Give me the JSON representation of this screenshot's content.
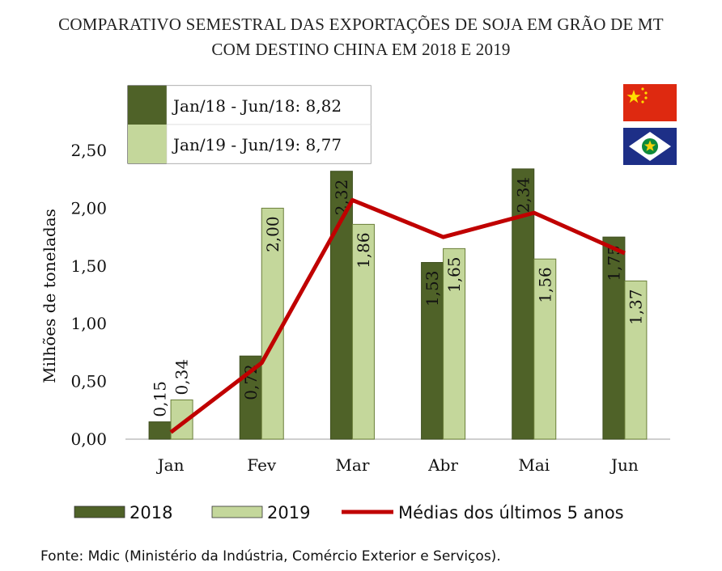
{
  "chart_data": {
    "type": "bar",
    "title": [
      "COMPARATIVO SEMESTRAL DAS EXPORTAÇÕES DE SOJA EM GRÃO DE MT",
      "COM DESTINO CHINA EM 2018 E 2019"
    ],
    "ylabel": "Milhões de toneladas",
    "ylim": [
      0,
      2.5
    ],
    "yticks": [
      "0,00",
      "0,50",
      "1,00",
      "1,50",
      "2,00",
      "2,50"
    ],
    "categories": [
      "Jan",
      "Fev",
      "Mar",
      "Abr",
      "Mai",
      "Jun"
    ],
    "series": [
      {
        "name": "2018",
        "kind": "bar",
        "color": "#4f6228",
        "values": [
          0.15,
          0.72,
          2.32,
          1.53,
          2.34,
          1.75
        ],
        "labels": [
          "0,15",
          "0,72",
          "2,32",
          "1,53",
          "2,34",
          "1,75"
        ]
      },
      {
        "name": "2019",
        "kind": "bar",
        "color": "#c4d79b",
        "values": [
          0.34,
          2.0,
          1.86,
          1.65,
          1.56,
          1.37
        ],
        "labels": [
          "0,34",
          "2,00",
          "1,86",
          "1,65",
          "1,56",
          "1,37"
        ]
      },
      {
        "name": "Médias dos últimos 5 anos",
        "kind": "line",
        "color": "#c00000",
        "values": [
          0.06,
          0.66,
          2.07,
          1.75,
          1.96,
          1.61
        ]
      }
    ],
    "totals_box": [
      {
        "label": "Jan/18 - Jun/18: 8,82",
        "color": "#4f6228"
      },
      {
        "label": "Jan/19 - Jun/19: 8,77",
        "color": "#c4d79b"
      }
    ],
    "legend_position": "bottom",
    "grid": false,
    "source": "Fonte: Mdic (Ministério da Indústria, Comércio Exterior e Serviços)."
  },
  "flags": [
    {
      "name": "china-flag",
      "color": "#de2910",
      "star_color": "#ffde00"
    },
    {
      "name": "mato-grosso-flag",
      "color": "#1d2f87",
      "diamond_color": "#ffffff",
      "circle_color": "#0d8a3b",
      "star_color": "#f5d20b"
    }
  ]
}
